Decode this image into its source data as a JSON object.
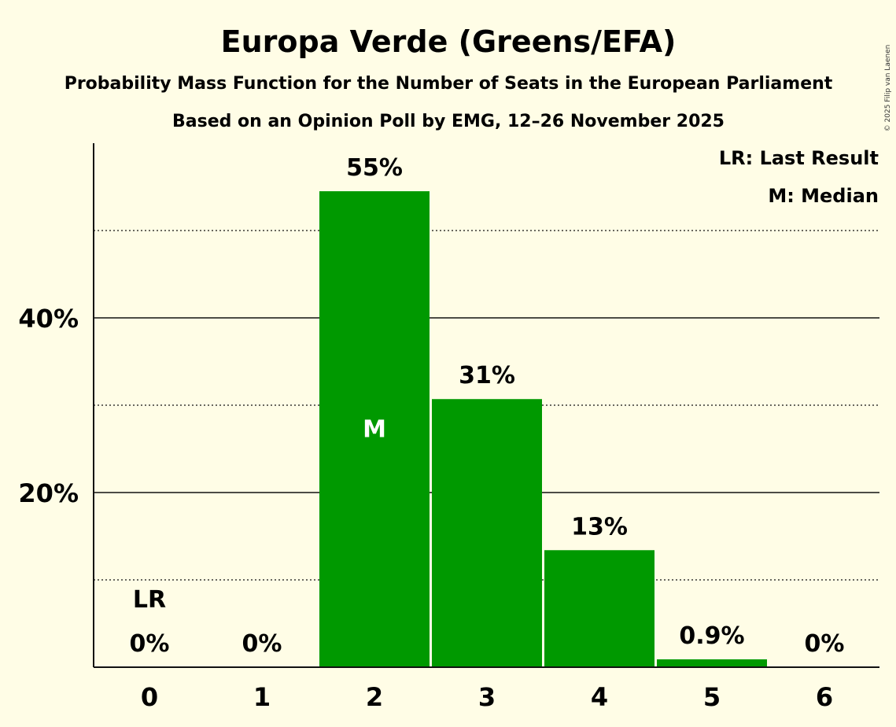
{
  "chart_data": {
    "type": "bar",
    "title": "Europa Verde (Greens/EFA)",
    "subtitle": "Probability Mass Function for the Number of Seats in the European Parliament",
    "subtitle2": "Based on an Opinion Poll by EMG, 12–26 November 2025",
    "copyright": "© 2025 Filip van Laenen",
    "legend": [
      "LR: Last Result",
      "M: Median"
    ],
    "categories": [
      "0",
      "1",
      "2",
      "3",
      "4",
      "5",
      "6"
    ],
    "values": [
      0,
      0,
      54.5,
      30.7,
      13.4,
      0.9,
      0
    ],
    "value_labels": [
      "0%",
      "0%",
      "55%",
      "31%",
      "13%",
      "0.9%",
      "0%"
    ],
    "ylim": [
      0,
      60
    ],
    "y_ticks": [
      {
        "value": 20,
        "label": "20%"
      },
      {
        "value": 40,
        "label": "40%"
      }
    ],
    "minor_gridlines": [
      10,
      30,
      50
    ],
    "last_result": {
      "category": "0",
      "label": "LR"
    },
    "median": {
      "category": "2",
      "label": "M"
    },
    "bar_color": "#009900"
  }
}
